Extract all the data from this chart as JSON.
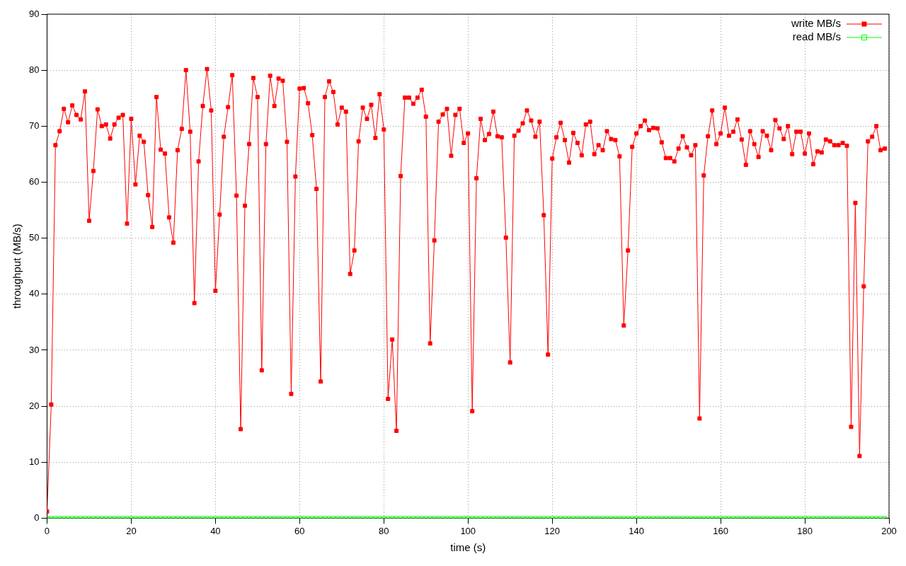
{
  "chart_data": {
    "type": "line",
    "xlabel": "time (s)",
    "ylabel": "throughput (MB/s)",
    "xlim": [
      0,
      200
    ],
    "ylim": [
      0,
      90
    ],
    "xticks": [
      0,
      20,
      40,
      60,
      80,
      100,
      120,
      140,
      160,
      180,
      200
    ],
    "yticks": [
      0,
      10,
      20,
      30,
      40,
      50,
      60,
      70,
      80,
      90
    ],
    "grid": true,
    "legend": "top right",
    "marker": "square",
    "line_style": "solid",
    "x": [
      0,
      1,
      2,
      3,
      4,
      5,
      6,
      7,
      8,
      9,
      10,
      11,
      12,
      13,
      14,
      15,
      16,
      17,
      18,
      19,
      20,
      21,
      22,
      23,
      24,
      25,
      26,
      27,
      28,
      29,
      30,
      31,
      32,
      33,
      34,
      35,
      36,
      37,
      38,
      39,
      40,
      41,
      42,
      43,
      44,
      45,
      46,
      47,
      48,
      49,
      50,
      51,
      52,
      53,
      54,
      55,
      56,
      57,
      58,
      59,
      60,
      61,
      62,
      63,
      64,
      65,
      66,
      67,
      68,
      69,
      70,
      71,
      72,
      73,
      74,
      75,
      76,
      77,
      78,
      79,
      80,
      81,
      82,
      83,
      84,
      85,
      86,
      87,
      88,
      89,
      90,
      91,
      92,
      93,
      94,
      95,
      96,
      97,
      98,
      99,
      100,
      101,
      102,
      103,
      104,
      105,
      106,
      107,
      108,
      109,
      110,
      111,
      112,
      113,
      114,
      115,
      116,
      117,
      118,
      119,
      120,
      121,
      122,
      123,
      124,
      125,
      126,
      127,
      128,
      129,
      130,
      131,
      132,
      133,
      134,
      135,
      136,
      137,
      138,
      139,
      140,
      141,
      142,
      143,
      144,
      145,
      146,
      147,
      148,
      149,
      150,
      151,
      152,
      153,
      154,
      155,
      156,
      157,
      158,
      159,
      160,
      161,
      162,
      163,
      164,
      165,
      166,
      167,
      168,
      169,
      170,
      171,
      172,
      173,
      174,
      175,
      176,
      177,
      178,
      179,
      180,
      181,
      182,
      183,
      184,
      185,
      186,
      187,
      188,
      189,
      190,
      191,
      192,
      193,
      194,
      195,
      196,
      197,
      198,
      199
    ],
    "series": [
      {
        "name": "write MB/s",
        "color": "#ff0000",
        "values": [
          1.2,
          20.3,
          66.6,
          69.1,
          73.1,
          70.7,
          73.7,
          72.0,
          71.2,
          76.2,
          53.1,
          62.0,
          73.0,
          70.0,
          70.3,
          67.8,
          70.3,
          71.5,
          72.0,
          52.6,
          71.3,
          59.6,
          68.3,
          67.2,
          57.7,
          52.0,
          75.2,
          65.8,
          65.1,
          53.7,
          49.2,
          65.7,
          69.5,
          80.0,
          69.0,
          38.4,
          63.7,
          73.6,
          80.2,
          72.8,
          40.6,
          54.2,
          68.1,
          73.4,
          79.1,
          57.6,
          15.9,
          55.8,
          66.8,
          78.6,
          75.2,
          26.4,
          66.8,
          79.0,
          73.6,
          78.5,
          78.1,
          67.2,
          22.2,
          61.0,
          76.7,
          76.8,
          74.1,
          68.4,
          58.8,
          24.4,
          75.2,
          78.0,
          76.1,
          70.3,
          73.3,
          72.6,
          43.6,
          47.8,
          67.3,
          73.3,
          71.3,
          73.8,
          67.9,
          75.7,
          69.4,
          21.3,
          31.9,
          15.6,
          61.1,
          75.1,
          75.1,
          74.0,
          75.1,
          76.5,
          71.7,
          31.2,
          49.6,
          70.8,
          72.1,
          73.1,
          64.7,
          72.0,
          73.1,
          67.0,
          68.7,
          19.1,
          60.7,
          71.3,
          67.5,
          68.6,
          72.6,
          68.2,
          68.0,
          50.1,
          27.8,
          68.3,
          69.2,
          70.5,
          72.8,
          71.0,
          68.1,
          70.8,
          54.1,
          29.2,
          64.2,
          68.0,
          70.6,
          67.5,
          63.5,
          68.8,
          67.0,
          64.8,
          70.3,
          70.8,
          65.0,
          66.6,
          65.7,
          69.1,
          67.7,
          67.5,
          64.6,
          34.4,
          47.8,
          66.3,
          68.7,
          70.0,
          71.0,
          69.3,
          69.7,
          69.6,
          67.1,
          64.3,
          64.3,
          63.7,
          66.0,
          68.2,
          66.2,
          64.8,
          66.6,
          17.8,
          61.2,
          68.2,
          72.8,
          66.8,
          68.7,
          73.3,
          68.3,
          69.0,
          71.2,
          67.6,
          63.1,
          69.1,
          66.8,
          64.5,
          69.1,
          68.3,
          65.7,
          71.1,
          69.6,
          67.7,
          70.0,
          65.0,
          69.0,
          69.0,
          65.1,
          68.7,
          63.2,
          65.5,
          65.3,
          67.6,
          67.3,
          66.6,
          66.6,
          67.0,
          66.5,
          16.3,
          56.3,
          11.1,
          41.4,
          67.3,
          68.1,
          70.0,
          65.7,
          66.0
        ]
      },
      {
        "name": "read MB/s",
        "color": "#00ff00",
        "values": [
          0,
          0,
          0,
          0,
          0,
          0,
          0,
          0,
          0,
          0,
          0,
          0,
          0,
          0,
          0,
          0,
          0,
          0,
          0,
          0,
          0,
          0,
          0,
          0,
          0,
          0,
          0,
          0,
          0,
          0,
          0,
          0,
          0,
          0,
          0,
          0,
          0,
          0,
          0,
          0,
          0,
          0,
          0,
          0,
          0,
          0,
          0,
          0,
          0,
          0,
          0,
          0,
          0,
          0,
          0,
          0,
          0,
          0,
          0,
          0,
          0,
          0,
          0,
          0,
          0,
          0,
          0,
          0,
          0,
          0,
          0,
          0,
          0,
          0,
          0,
          0,
          0,
          0,
          0,
          0,
          0,
          0,
          0,
          0,
          0,
          0,
          0,
          0,
          0,
          0,
          0,
          0,
          0,
          0,
          0,
          0,
          0,
          0,
          0,
          0,
          0,
          0,
          0,
          0,
          0,
          0,
          0,
          0,
          0,
          0,
          0,
          0,
          0,
          0,
          0,
          0,
          0,
          0,
          0,
          0,
          0,
          0,
          0,
          0,
          0,
          0,
          0,
          0,
          0,
          0,
          0,
          0,
          0,
          0,
          0,
          0,
          0,
          0,
          0,
          0,
          0,
          0,
          0,
          0,
          0,
          0,
          0,
          0,
          0,
          0,
          0,
          0,
          0,
          0,
          0,
          0,
          0,
          0,
          0,
          0,
          0,
          0,
          0,
          0,
          0,
          0,
          0,
          0,
          0,
          0,
          0,
          0,
          0,
          0,
          0,
          0,
          0,
          0,
          0,
          0,
          0,
          0,
          0,
          0,
          0,
          0,
          0,
          0,
          0,
          0,
          0,
          0,
          0,
          0,
          0,
          0,
          0,
          0,
          0,
          0
        ]
      }
    ]
  }
}
